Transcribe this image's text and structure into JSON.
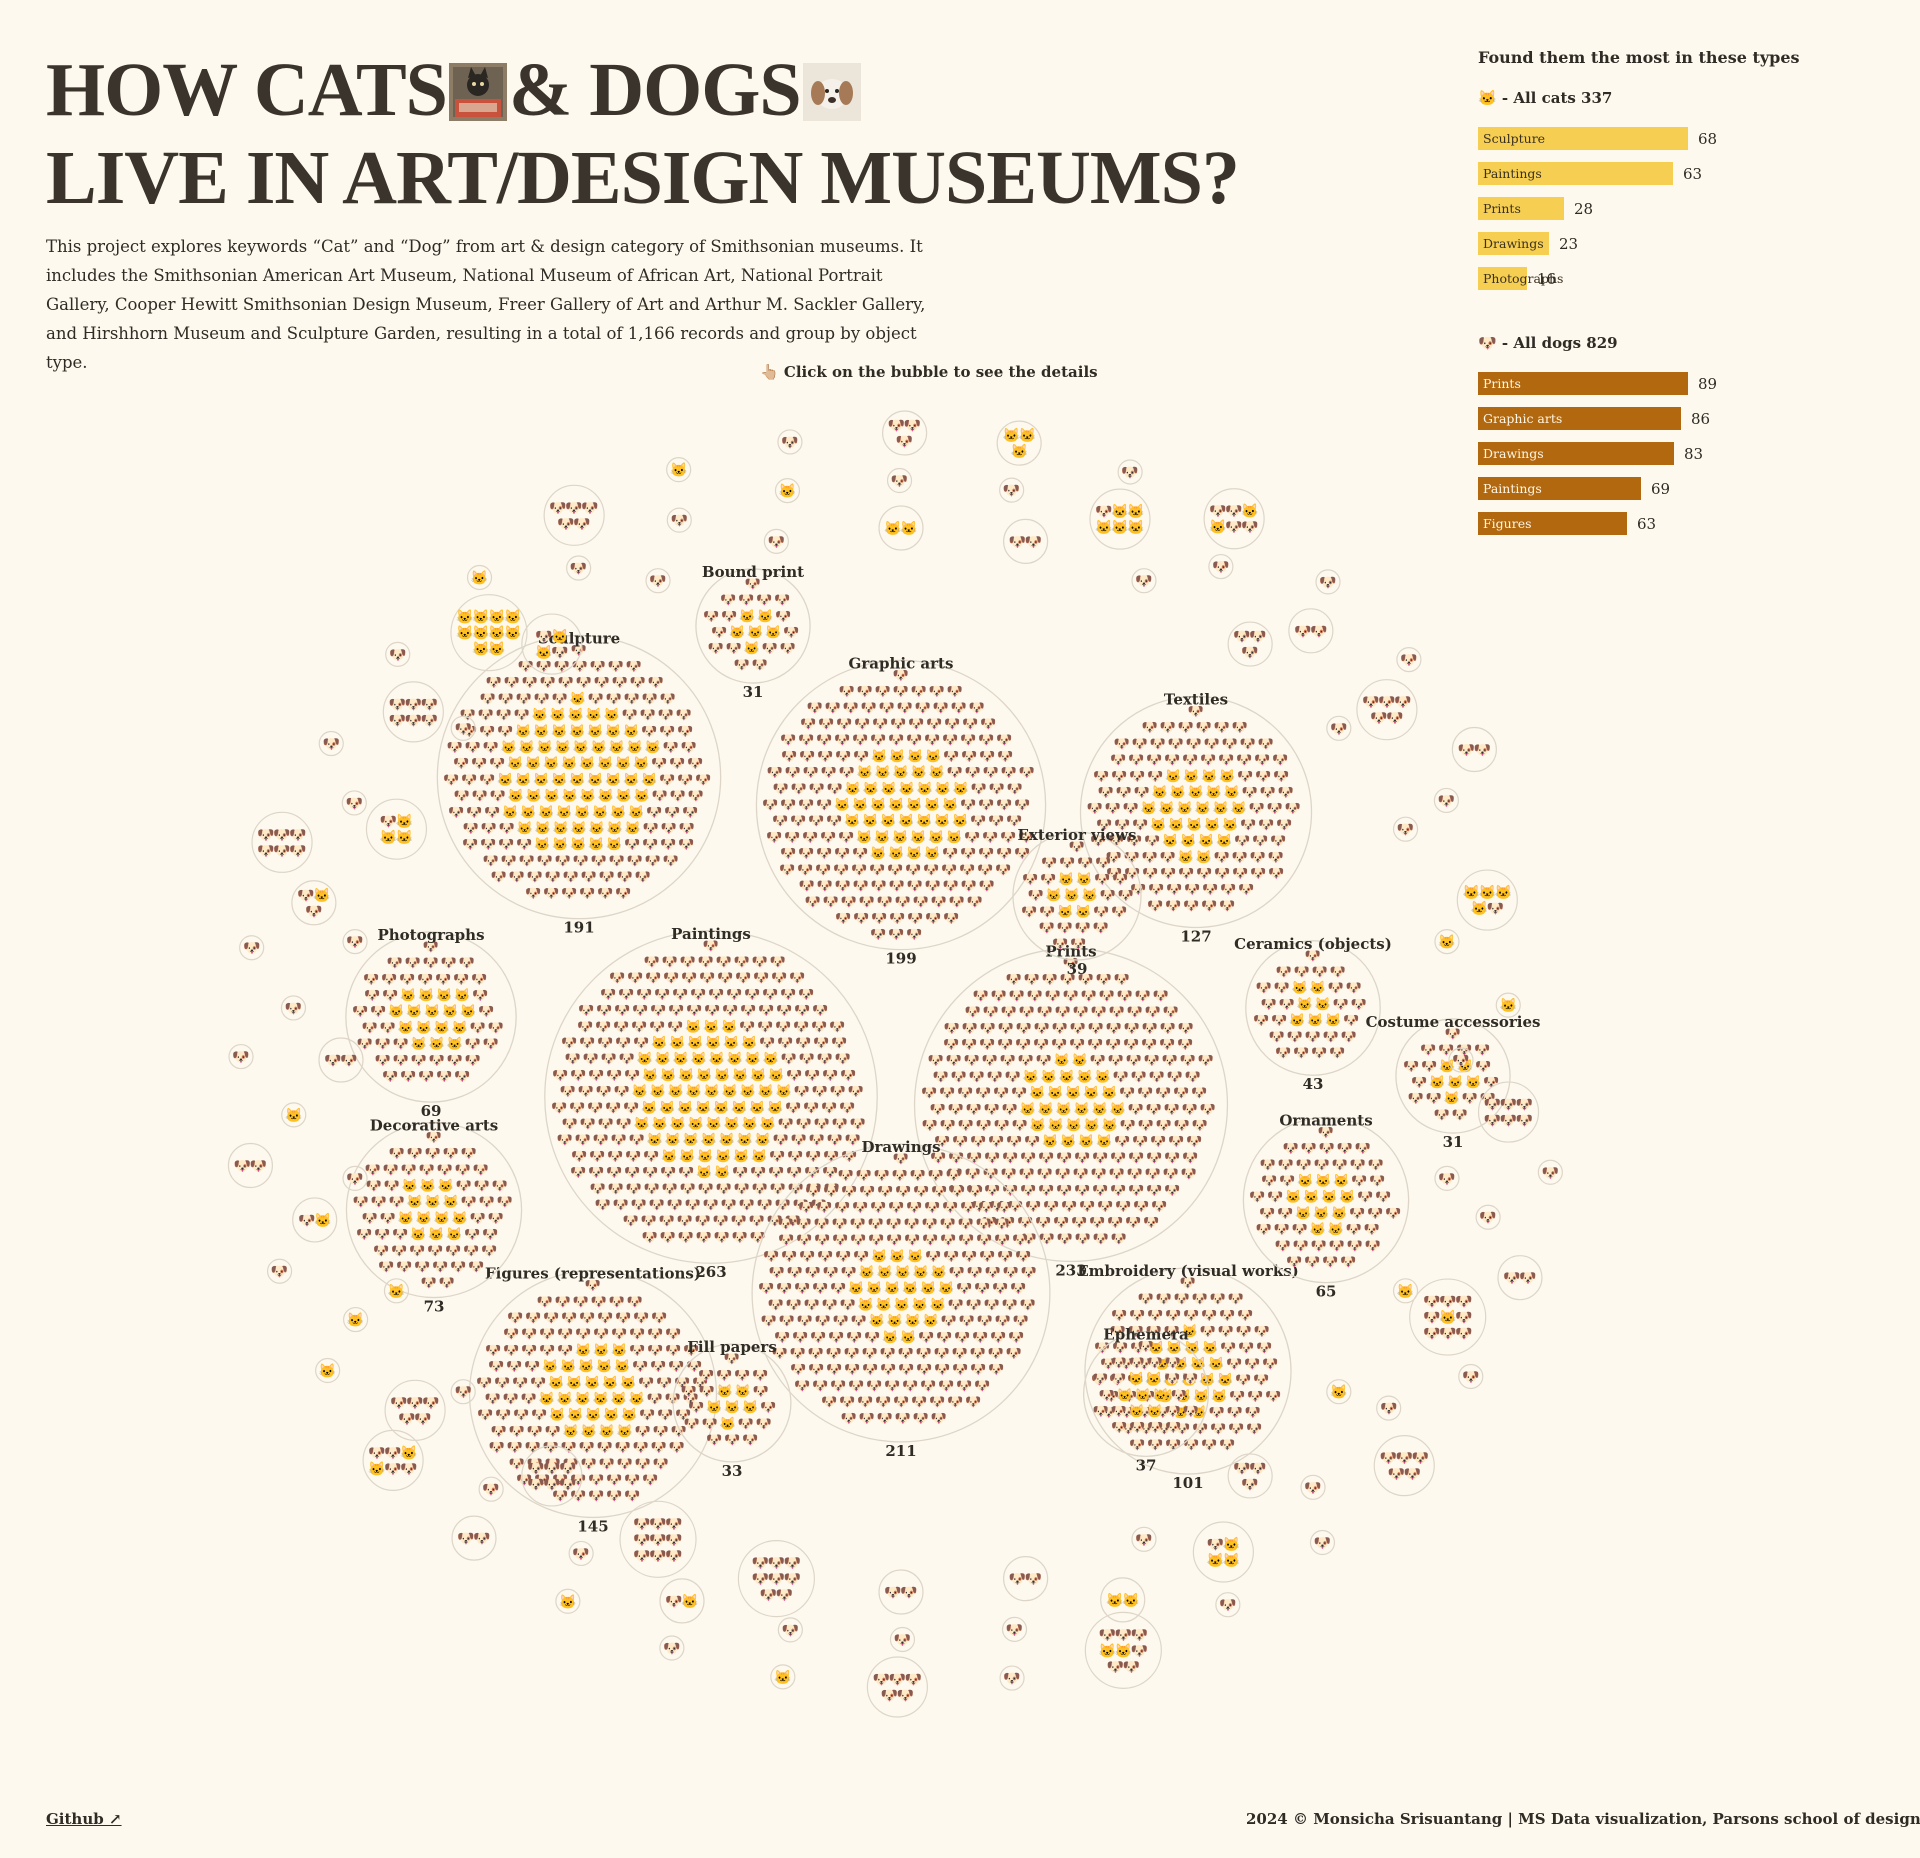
{
  "page": {
    "title_line1_part1": "HOW CATS",
    "title_line1_part2": "& DOGS",
    "title_line2": "LIVE IN ART/DESIGN MUSEUMS?",
    "intro": "This project explores keywords “Cat” and “Dog” from art & design category of Smithsonian museums. It includes the Smithsonian American Art Museum, National Museum of African Art, National Portrait Gallery, Cooper Hewitt Smithsonian Design Museum, Freer Gallery of Art and Arthur M. Sackler Gallery, and Hirshhorn Museum and Sculpture Garden, resulting in a total of 1,166 records and group by object type.",
    "hint": "👆🏼 Click on the bubble to see the details",
    "footer_link": "Github ↗",
    "footer_credit": "2024 © Monsicha Srisuantang | MS Data visualization, Parsons school of design",
    "cat_emoji": "🐱",
    "dog_emoji": "🐶"
  },
  "colors": {
    "background": "#fdf9ef",
    "cat_bar": "#f6cf52",
    "dog_bar": "#b1680f",
    "text": "#2f2b25",
    "bubble_stroke": "#ddd6c8"
  },
  "sidebar": {
    "heading": "Found them the most in these types",
    "cats_label": "🐱 - All cats 337",
    "dogs_label": "🐶 - All dogs 829",
    "cat_bars": [
      {
        "label": "Sculpture",
        "value": 68
      },
      {
        "label": "Paintings",
        "value": 63
      },
      {
        "label": "Prints",
        "value": 28
      },
      {
        "label": "Drawings",
        "value": 23
      },
      {
        "label": "Photographs",
        "value": 16
      }
    ],
    "dog_bars": [
      {
        "label": "Prints",
        "value": 89
      },
      {
        "label": "Graphic arts",
        "value": 86
      },
      {
        "label": "Drawings",
        "value": 83
      },
      {
        "label": "Paintings",
        "value": 69
      },
      {
        "label": "Figures",
        "value": 63
      }
    ]
  },
  "chart_data": {
    "type": "bubble",
    "total_records": 1166,
    "labeled_types": [
      {
        "name": "Paintings",
        "total": 263,
        "cats": 63
      },
      {
        "name": "Prints",
        "total": 233,
        "cats": 28
      },
      {
        "name": "Drawings",
        "total": 211,
        "cats": 23
      },
      {
        "name": "Graphic arts",
        "total": 199
      },
      {
        "name": "Sculpture",
        "total": 191,
        "cats": 68
      },
      {
        "name": "Figures (representations)",
        "total": 145
      },
      {
        "name": "Textiles",
        "total": 127
      },
      {
        "name": "Embroidery (visual works)",
        "total": 101
      },
      {
        "name": "Decorative arts",
        "total": 73
      },
      {
        "name": "Photographs",
        "total": 69,
        "cats": 16
      },
      {
        "name": "Ornaments",
        "total": 65
      },
      {
        "name": "Ceramics (objects)",
        "total": 43
      },
      {
        "name": "Exterior views",
        "total": 39
      },
      {
        "name": "Ephemera",
        "total": 37
      },
      {
        "name": "Fill papers",
        "total": 33
      },
      {
        "name": "Bound print",
        "total": 31
      },
      {
        "name": "Costume accessories",
        "total": 31
      }
    ],
    "small_types": [
      {
        "cats": 0,
        "dogs": 1
      },
      {
        "cats": 0,
        "dogs": 1
      },
      {
        "cats": 1,
        "dogs": 0
      },
      {
        "cats": 1,
        "dogs": 0
      },
      {
        "cats": 0,
        "dogs": 3
      },
      {
        "cats": 0,
        "dogs": 1
      },
      {
        "cats": 0,
        "dogs": 2
      },
      {
        "cats": 0,
        "dogs": 2
      },
      {
        "cats": 0,
        "dogs": 8
      },
      {
        "cats": 0,
        "dogs": 9
      },
      {
        "cats": 0,
        "dogs": 6
      },
      {
        "cats": 0,
        "dogs": 1
      },
      {
        "cats": 1,
        "dogs": 0
      },
      {
        "cats": 0,
        "dogs": 1
      },
      {
        "cats": 0,
        "dogs": 2
      },
      {
        "cats": 0,
        "dogs": 1
      },
      {
        "cats": 3,
        "dogs": 1
      },
      {
        "cats": 0,
        "dogs": 1
      },
      {
        "cats": 2,
        "dogs": 2
      },
      {
        "cats": 0,
        "dogs": 1
      },
      {
        "cats": 0,
        "dogs": 1
      },
      {
        "cats": 2,
        "dogs": 0
      },
      {
        "cats": 0,
        "dogs": 2
      },
      {
        "cats": 0,
        "dogs": 1
      },
      {
        "cats": 0,
        "dogs": 3
      },
      {
        "cats": 0,
        "dogs": 1
      },
      {
        "cats": 0,
        "dogs": 1
      },
      {
        "cats": 1,
        "dogs": 0
      },
      {
        "cats": 0,
        "dogs": 6
      },
      {
        "cats": 0,
        "dogs": 1
      },
      {
        "cats": 1,
        "dogs": 8
      },
      {
        "cats": 0,
        "dogs": 1
      },
      {
        "cats": 0,
        "dogs": 1
      },
      {
        "cats": 3,
        "dogs": 1
      },
      {
        "cats": 2,
        "dogs": 0
      },
      {
        "cats": 0,
        "dogs": 1
      },
      {
        "cats": 0,
        "dogs": 1
      },
      {
        "cats": 0,
        "dogs": 1
      },
      {
        "cats": 1,
        "dogs": 1
      },
      {
        "cats": 0,
        "dogs": 1
      },
      {
        "cats": 0,
        "dogs": 1
      },
      {
        "cats": 0,
        "dogs": 5
      },
      {
        "cats": 1,
        "dogs": 0
      },
      {
        "cats": 1,
        "dogs": 1
      },
      {
        "cats": 1,
        "dogs": 0
      },
      {
        "cats": 0,
        "dogs": 1
      },
      {
        "cats": 1,
        "dogs": 2
      },
      {
        "cats": 0,
        "dogs": 1
      },
      {
        "cats": 0,
        "dogs": 6
      },
      {
        "cats": 10,
        "dogs": 0
      },
      {
        "cats": 0,
        "dogs": 1
      },
      {
        "cats": 0,
        "dogs": 1
      },
      {
        "cats": 1,
        "dogs": 0
      },
      {
        "cats": 0,
        "dogs": 1
      },
      {
        "cats": 0,
        "dogs": 1
      },
      {
        "cats": 5,
        "dogs": 1
      },
      {
        "cats": 0,
        "dogs": 1
      },
      {
        "cats": 0,
        "dogs": 2
      },
      {
        "cats": 0,
        "dogs": 5
      },
      {
        "cats": 0,
        "dogs": 1
      },
      {
        "cats": 4,
        "dogs": 1
      },
      {
        "cats": 1,
        "dogs": 0
      },
      {
        "cats": 0,
        "dogs": 1
      },
      {
        "cats": 0,
        "dogs": 2
      },
      {
        "cats": 0,
        "dogs": 1
      },
      {
        "cats": 0,
        "dogs": 5
      },
      {
        "cats": 0,
        "dogs": 1
      },
      {
        "cats": 0,
        "dogs": 1
      },
      {
        "cats": 2,
        "dogs": 6
      },
      {
        "cats": 0,
        "dogs": 1
      },
      {
        "cats": 0,
        "dogs": 5
      },
      {
        "cats": 1,
        "dogs": 0
      },
      {
        "cats": 0,
        "dogs": 1
      },
      {
        "cats": 1,
        "dogs": 0
      },
      {
        "cats": 0,
        "dogs": 2
      },
      {
        "cats": 2,
        "dogs": 4
      },
      {
        "cats": 1,
        "dogs": 0
      },
      {
        "cats": 0,
        "dogs": 1
      },
      {
        "cats": 0,
        "dogs": 2
      },
      {
        "cats": 0,
        "dogs": 1
      },
      {
        "cats": 0,
        "dogs": 1
      },
      {
        "cats": 0,
        "dogs": 6
      },
      {
        "cats": 0,
        "dogs": 1
      },
      {
        "cats": 0,
        "dogs": 1
      },
      {
        "cats": 1,
        "dogs": 0
      },
      {
        "cats": 0,
        "dogs": 5
      },
      {
        "cats": 1,
        "dogs": 0
      },
      {
        "cats": 0,
        "dogs": 1
      },
      {
        "cats": 0,
        "dogs": 3
      },
      {
        "cats": 3,
        "dogs": 0
      },
      {
        "cats": 0,
        "dogs": 1
      },
      {
        "cats": 2,
        "dogs": 4
      },
      {
        "cats": 0,
        "dogs": 1
      },
      {
        "cats": 0,
        "dogs": 1
      },
      {
        "cats": 0,
        "dogs": 2
      }
    ]
  }
}
